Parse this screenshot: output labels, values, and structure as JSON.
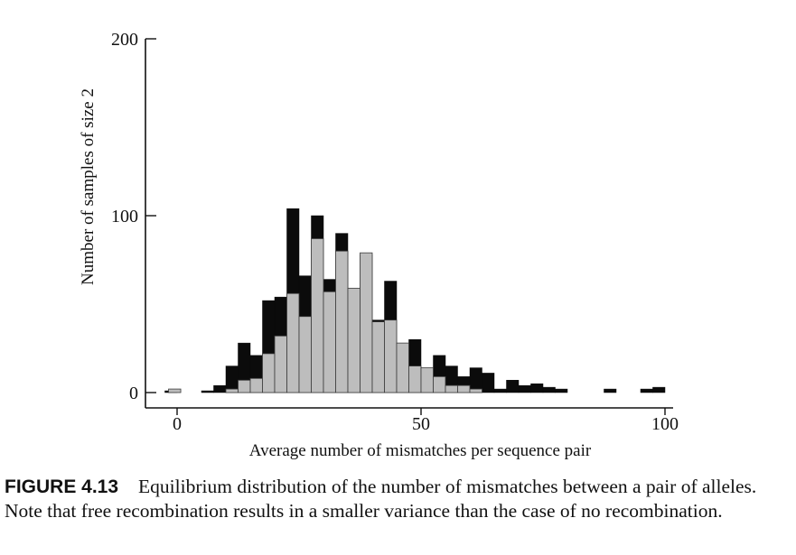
{
  "chart_data": {
    "type": "bar",
    "xlabel": "Average number of mismatches per sequence pair",
    "ylabel": "Number of samples of size 2",
    "xlim": [
      -3,
      101
    ],
    "ylim": [
      0,
      200
    ],
    "x_ticks": [
      0,
      50,
      100
    ],
    "y_ticks": [
      0,
      100,
      200
    ],
    "bin_width": 2.5,
    "series": [
      {
        "style": "black",
        "bins": [
          {
            "x": -1.25,
            "value": 1
          },
          {
            "x": 6.25,
            "value": 1
          },
          {
            "x": 8.75,
            "value": 4
          },
          {
            "x": 11.25,
            "value": 15
          },
          {
            "x": 13.75,
            "value": 28
          },
          {
            "x": 16.25,
            "value": 21
          },
          {
            "x": 18.75,
            "value": 52
          },
          {
            "x": 21.25,
            "value": 54
          },
          {
            "x": 23.75,
            "value": 104
          },
          {
            "x": 26.25,
            "value": 66
          },
          {
            "x": 28.75,
            "value": 100
          },
          {
            "x": 31.25,
            "value": 64
          },
          {
            "x": 33.75,
            "value": 90
          },
          {
            "x": 36.25,
            "value": 58
          },
          {
            "x": 38.75,
            "value": 78
          },
          {
            "x": 41.25,
            "value": 41
          },
          {
            "x": 43.75,
            "value": 63
          },
          {
            "x": 46.25,
            "value": 25
          },
          {
            "x": 48.75,
            "value": 30
          },
          {
            "x": 51.25,
            "value": 13
          },
          {
            "x": 53.75,
            "value": 21
          },
          {
            "x": 56.25,
            "value": 15
          },
          {
            "x": 58.75,
            "value": 9
          },
          {
            "x": 61.25,
            "value": 14
          },
          {
            "x": 63.75,
            "value": 11
          },
          {
            "x": 66.25,
            "value": 2
          },
          {
            "x": 68.75,
            "value": 7
          },
          {
            "x": 71.25,
            "value": 4
          },
          {
            "x": 73.75,
            "value": 5
          },
          {
            "x": 76.25,
            "value": 3
          },
          {
            "x": 78.75,
            "value": 2
          },
          {
            "x": 88.75,
            "value": 2
          },
          {
            "x": 96.25,
            "value": 2
          },
          {
            "x": 98.75,
            "value": 3
          }
        ]
      },
      {
        "style": "gray",
        "bins": [
          {
            "x": -0.5,
            "value": 2
          },
          {
            "x": 11.25,
            "value": 2
          },
          {
            "x": 13.75,
            "value": 7
          },
          {
            "x": 16.25,
            "value": 8
          },
          {
            "x": 18.75,
            "value": 22
          },
          {
            "x": 21.25,
            "value": 32
          },
          {
            "x": 23.75,
            "value": 56
          },
          {
            "x": 26.25,
            "value": 43
          },
          {
            "x": 28.75,
            "value": 87
          },
          {
            "x": 31.25,
            "value": 57
          },
          {
            "x": 33.75,
            "value": 80
          },
          {
            "x": 36.25,
            "value": 59
          },
          {
            "x": 38.75,
            "value": 79
          },
          {
            "x": 41.25,
            "value": 40
          },
          {
            "x": 43.75,
            "value": 41
          },
          {
            "x": 46.25,
            "value": 28
          },
          {
            "x": 48.75,
            "value": 15
          },
          {
            "x": 51.25,
            "value": 14
          },
          {
            "x": 53.75,
            "value": 9
          },
          {
            "x": 56.25,
            "value": 4
          },
          {
            "x": 58.75,
            "value": 4
          },
          {
            "x": 61.25,
            "value": 2
          }
        ]
      }
    ]
  },
  "caption": {
    "label": "FIGURE 4.13",
    "text": "Equilibrium distribution of the number of mismatches between a pair of alleles. Note that free recombination results in a smaller variance than the case of no recombination."
  }
}
